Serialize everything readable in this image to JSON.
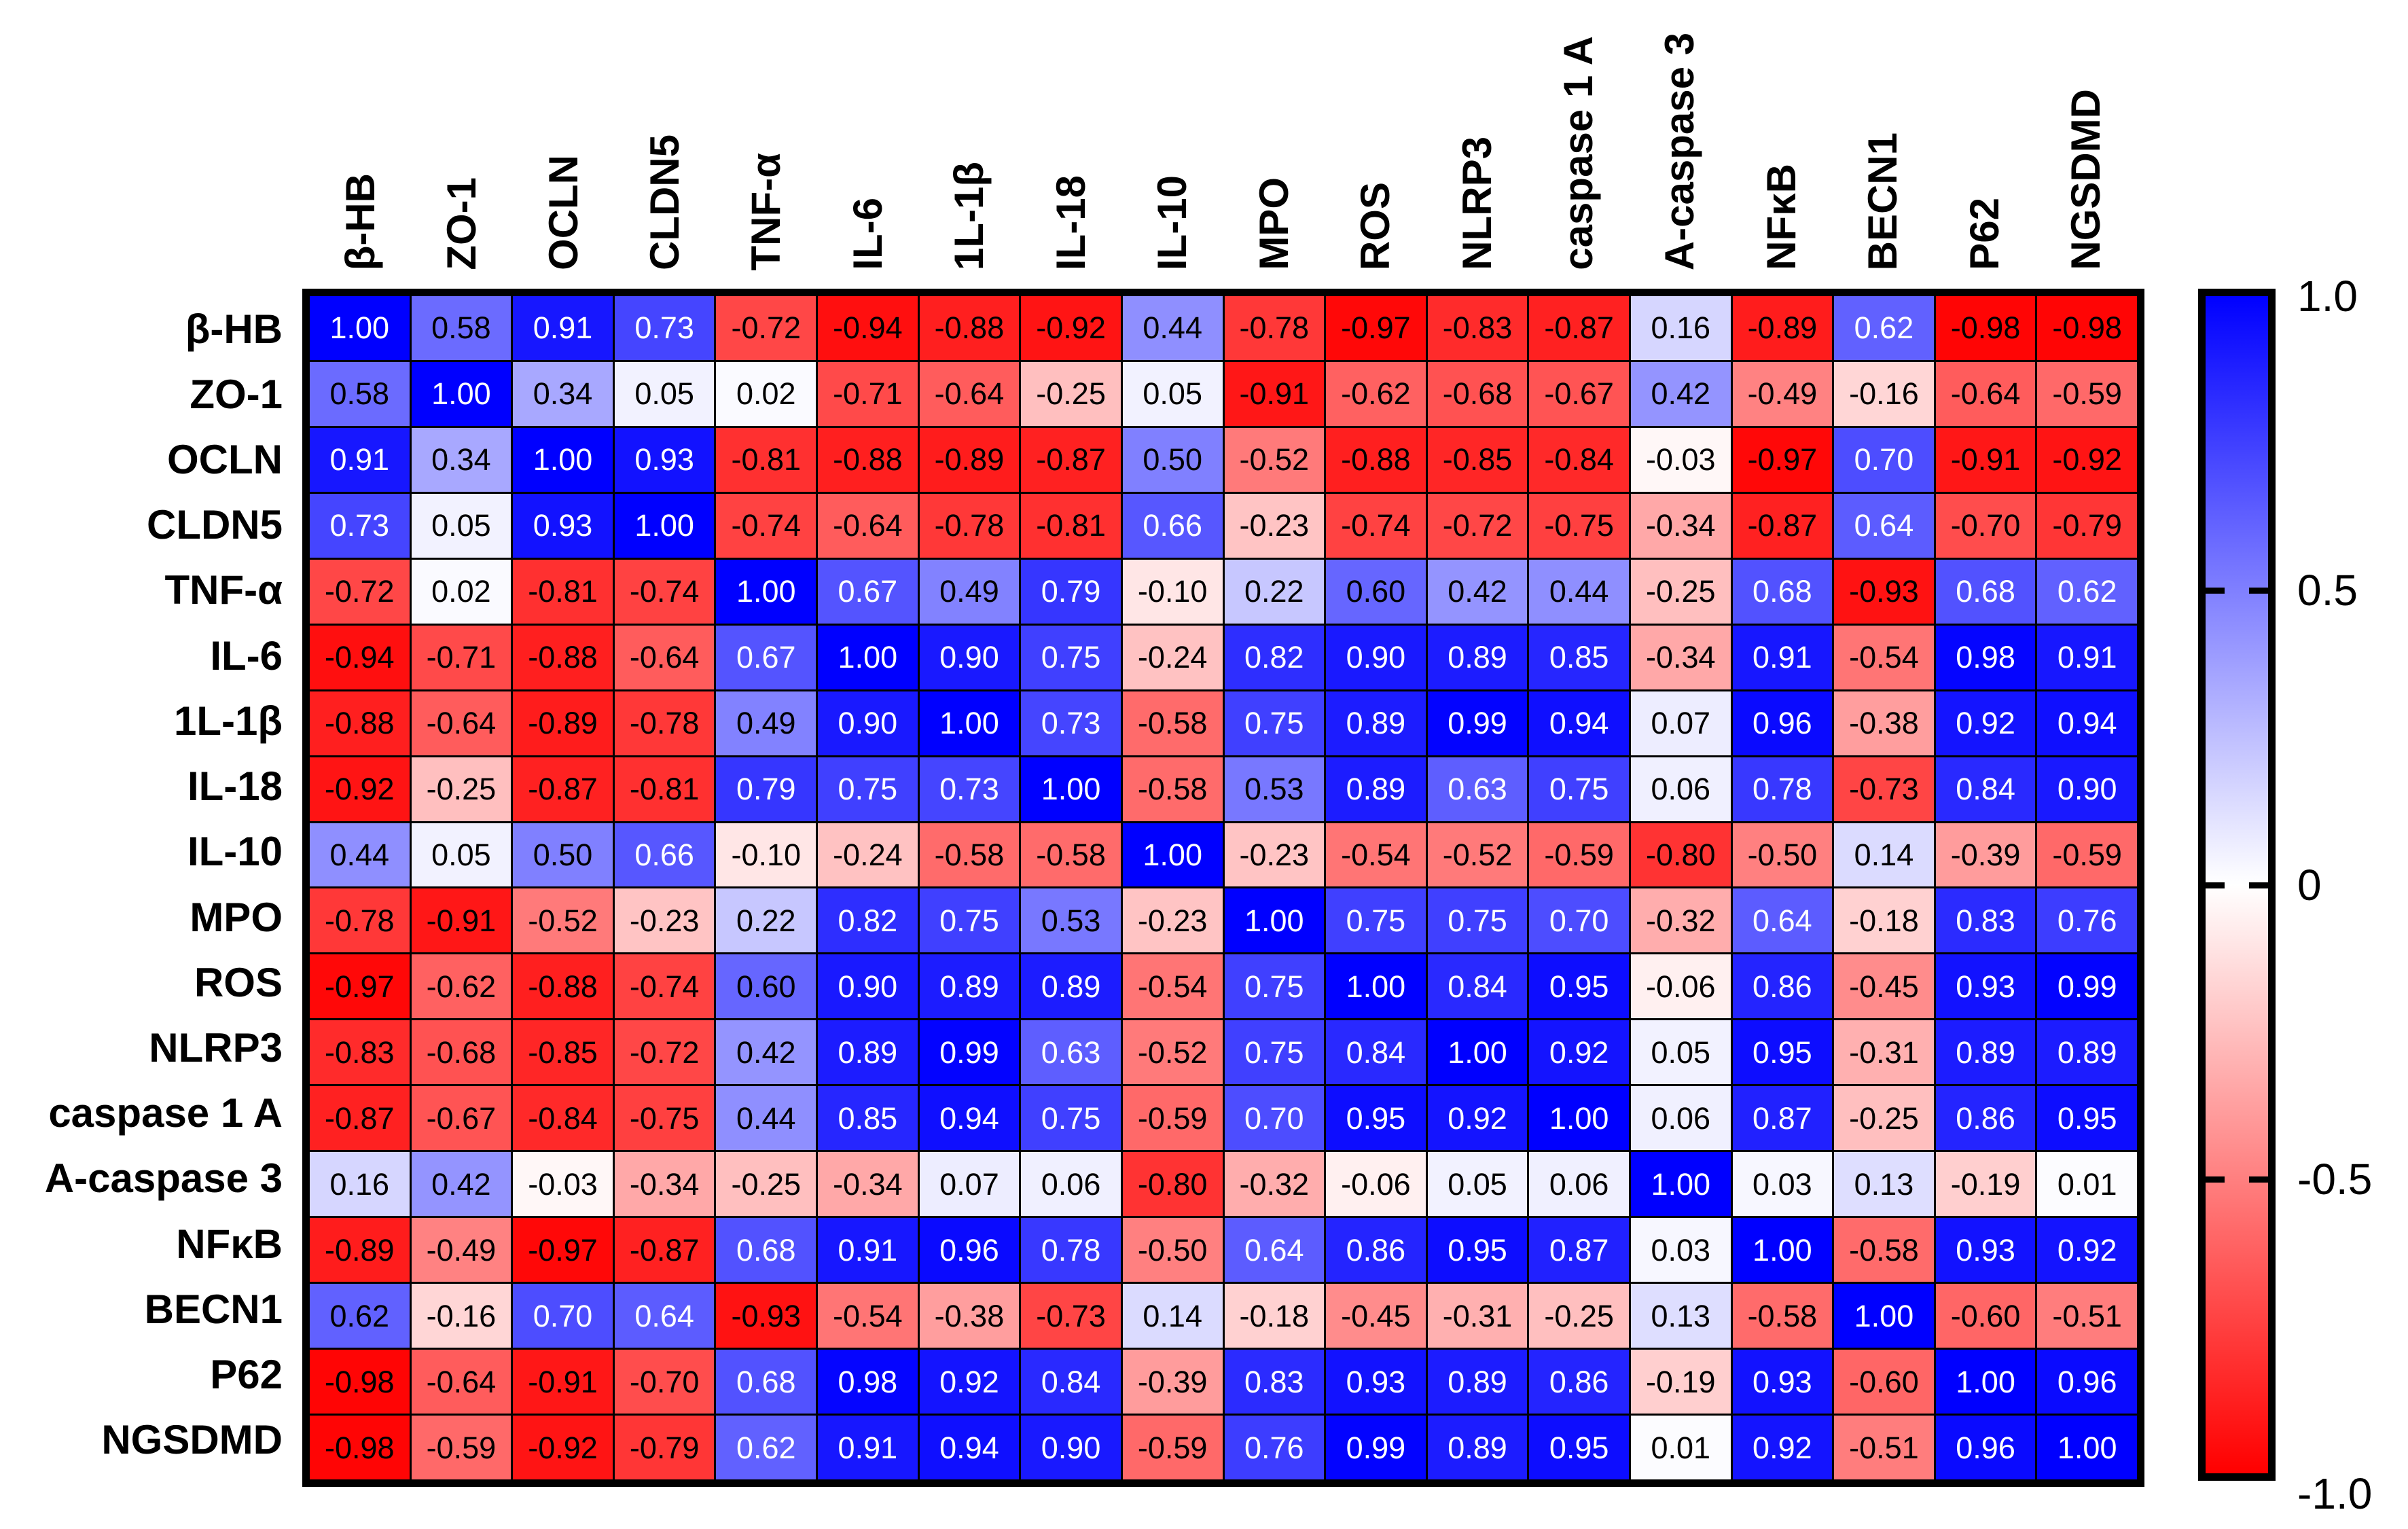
{
  "figure": {
    "kind": "correlation-heatmap",
    "background_color": "#ffffff",
    "grid_line_color": "#000000",
    "positive_color": "#0000ff",
    "zero_color": "#ffffff",
    "negative_color": "#ff0000",
    "text_rule": {
      "white_text_min_value": 0.62,
      "black_text_overrides": [
        [
          15,
          0
        ]
      ]
    }
  },
  "chart_data": {
    "type": "heatmap",
    "title": "",
    "xlabel": "",
    "ylabel": "",
    "value_range": [
      -1.0,
      1.0
    ],
    "x_labels": [
      "β-HB",
      "ZO-1",
      "OCLN",
      "CLDN5",
      "TNF-α",
      "IL-6",
      "1L-1β",
      "IL-18",
      "IL-10",
      "MPO",
      "ROS",
      "NLRP3",
      "caspase 1 A",
      "A-caspase 3",
      "NFκB",
      "BECN1",
      "P62",
      "NGSDMD"
    ],
    "y_labels": [
      "β-HB",
      "ZO-1",
      "OCLN",
      "CLDN5",
      "TNF-α",
      "IL-6",
      "1L-1β",
      "IL-18",
      "IL-10",
      "MPO",
      "ROS",
      "NLRP3",
      "caspase 1 A",
      "A-caspase 3",
      "NFκB",
      "BECN1",
      "P62",
      "NGSDMD"
    ],
    "matrix": [
      [
        1.0,
        0.58,
        0.91,
        0.73,
        -0.72,
        -0.94,
        -0.88,
        -0.92,
        0.44,
        -0.78,
        -0.97,
        -0.83,
        -0.87,
        0.16,
        -0.89,
        0.62,
        -0.98,
        -0.98
      ],
      [
        0.58,
        1.0,
        0.34,
        0.05,
        0.02,
        -0.71,
        -0.64,
        -0.25,
        0.05,
        -0.91,
        -0.62,
        -0.68,
        -0.67,
        0.42,
        -0.49,
        -0.16,
        -0.64,
        -0.59
      ],
      [
        0.91,
        0.34,
        1.0,
        0.93,
        -0.81,
        -0.88,
        -0.89,
        -0.87,
        0.5,
        -0.52,
        -0.88,
        -0.85,
        -0.84,
        -0.03,
        -0.97,
        0.7,
        -0.91,
        -0.92
      ],
      [
        0.73,
        0.05,
        0.93,
        1.0,
        -0.74,
        -0.64,
        -0.78,
        -0.81,
        0.66,
        -0.23,
        -0.74,
        -0.72,
        -0.75,
        -0.34,
        -0.87,
        0.64,
        -0.7,
        -0.79
      ],
      [
        -0.72,
        0.02,
        -0.81,
        -0.74,
        1.0,
        0.67,
        0.49,
        0.79,
        -0.1,
        0.22,
        0.6,
        0.42,
        0.44,
        -0.25,
        0.68,
        -0.93,
        0.68,
        0.62
      ],
      [
        -0.94,
        -0.71,
        -0.88,
        -0.64,
        0.67,
        1.0,
        0.9,
        0.75,
        -0.24,
        0.82,
        0.9,
        0.89,
        0.85,
        -0.34,
        0.91,
        -0.54,
        0.98,
        0.91
      ],
      [
        -0.88,
        -0.64,
        -0.89,
        -0.78,
        0.49,
        0.9,
        1.0,
        0.73,
        -0.58,
        0.75,
        0.89,
        0.99,
        0.94,
        0.07,
        0.96,
        -0.38,
        0.92,
        0.94
      ],
      [
        -0.92,
        -0.25,
        -0.87,
        -0.81,
        0.79,
        0.75,
        0.73,
        1.0,
        -0.58,
        0.53,
        0.89,
        0.63,
        0.75,
        0.06,
        0.78,
        -0.73,
        0.84,
        0.9
      ],
      [
        0.44,
        0.05,
        0.5,
        0.66,
        -0.1,
        -0.24,
        -0.58,
        -0.58,
        1.0,
        -0.23,
        -0.54,
        -0.52,
        -0.59,
        -0.8,
        -0.5,
        0.14,
        -0.39,
        -0.59
      ],
      [
        -0.78,
        -0.91,
        -0.52,
        -0.23,
        0.22,
        0.82,
        0.75,
        0.53,
        -0.23,
        1.0,
        0.75,
        0.75,
        0.7,
        -0.32,
        0.64,
        -0.18,
        0.83,
        0.76
      ],
      [
        -0.97,
        -0.62,
        -0.88,
        -0.74,
        0.6,
        0.9,
        0.89,
        0.89,
        -0.54,
        0.75,
        1.0,
        0.84,
        0.95,
        -0.06,
        0.86,
        -0.45,
        0.93,
        0.99
      ],
      [
        -0.83,
        -0.68,
        -0.85,
        -0.72,
        0.42,
        0.89,
        0.99,
        0.63,
        -0.52,
        0.75,
        0.84,
        1.0,
        0.92,
        0.05,
        0.95,
        -0.31,
        0.89,
        0.89
      ],
      [
        -0.87,
        -0.67,
        -0.84,
        -0.75,
        0.44,
        0.85,
        0.94,
        0.75,
        -0.59,
        0.7,
        0.95,
        0.92,
        1.0,
        0.06,
        0.87,
        -0.25,
        0.86,
        0.95
      ],
      [
        0.16,
        0.42,
        -0.03,
        -0.34,
        -0.25,
        -0.34,
        0.07,
        0.06,
        -0.8,
        -0.32,
        -0.06,
        0.05,
        0.06,
        1.0,
        0.03,
        0.13,
        -0.19,
        0.01
      ],
      [
        -0.89,
        -0.49,
        -0.97,
        -0.87,
        0.68,
        0.91,
        0.96,
        0.78,
        -0.5,
        0.64,
        0.86,
        0.95,
        0.87,
        0.03,
        1.0,
        -0.58,
        0.93,
        0.92
      ],
      [
        0.62,
        -0.16,
        0.7,
        0.64,
        -0.93,
        -0.54,
        -0.38,
        -0.73,
        0.14,
        -0.18,
        -0.45,
        -0.31,
        -0.25,
        0.13,
        -0.58,
        1.0,
        -0.6,
        -0.51
      ],
      [
        -0.98,
        -0.64,
        -0.91,
        -0.7,
        0.68,
        0.98,
        0.92,
        0.84,
        -0.39,
        0.83,
        0.93,
        0.89,
        0.86,
        -0.19,
        0.93,
        -0.6,
        1.0,
        0.96
      ],
      [
        -0.98,
        -0.59,
        -0.92,
        -0.79,
        0.62,
        0.91,
        0.94,
        0.9,
        -0.59,
        0.76,
        0.99,
        0.89,
        0.95,
        0.01,
        0.92,
        -0.51,
        0.96,
        1.0
      ]
    ],
    "legend_position": "right",
    "colorbar": {
      "tick_labels": [
        "1.0",
        "0.5",
        "0",
        "-0.5",
        "-1.0"
      ],
      "tick_values": [
        1.0,
        0.5,
        0.0,
        -0.5,
        -1.0
      ],
      "top_color": "#0000ff",
      "mid_color": "#ffffff",
      "bottom_color": "#ff0000"
    }
  }
}
